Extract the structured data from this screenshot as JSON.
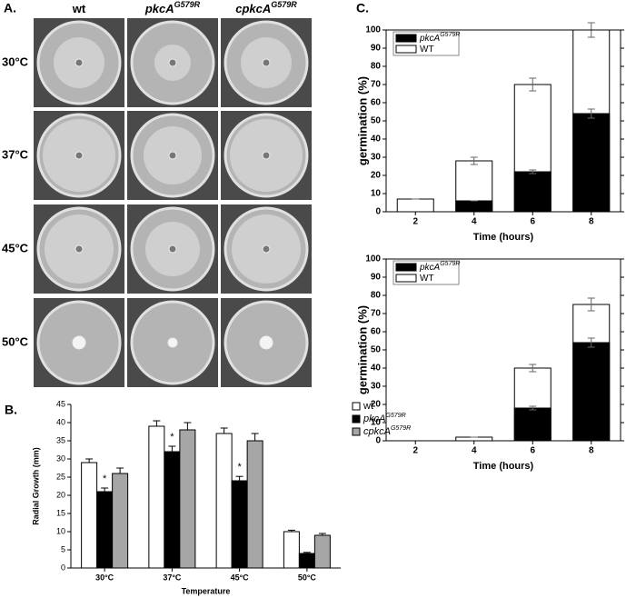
{
  "panel_a": {
    "label": "A.",
    "columns": [
      {
        "name": "wt"
      },
      {
        "name": "pkcA",
        "sup": "G579R"
      },
      {
        "name": "cpkcA",
        "sup": "G579R"
      }
    ],
    "rows": [
      "30°C",
      "37°C",
      "45°C",
      "50°C"
    ]
  },
  "chart_data": [
    {
      "type": "bar",
      "barmode": "group",
      "panel_label": "B.",
      "errorbars": "upper",
      "frame": false,
      "legend": "right",
      "categories": [
        "30°C",
        "37°C",
        "45°C",
        "50°C"
      ],
      "xlabel": "Temperature",
      "ylabel": "Radial Growth (mm)",
      "ylim": [
        0,
        45
      ],
      "yticks": [
        0,
        5,
        10,
        15,
        20,
        25,
        30,
        35,
        40,
        45
      ],
      "series": [
        {
          "name": "wt",
          "color": "#ffffff",
          "values": [
            29,
            39,
            37,
            10
          ],
          "errors": [
            1,
            1.5,
            1.5,
            0.4
          ]
        },
        {
          "name": "pkcA",
          "name_sup": "G579R",
          "color": "#000000",
          "values": [
            21,
            32,
            24,
            4
          ],
          "errors": [
            1,
            1.5,
            1.2,
            0.3
          ],
          "annotations": [
            "*",
            "*",
            "*",
            null
          ]
        },
        {
          "name": "cpkcA",
          "name_sup": "G579R",
          "color": "#a6a6a6",
          "values": [
            26,
            38,
            35,
            9
          ],
          "errors": [
            1.5,
            2,
            2,
            0.5
          ]
        }
      ]
    },
    {
      "type": "bar",
      "barmode": "overlay",
      "panel_label": "C.",
      "errorbars": "both",
      "frame": true,
      "legend": "upper left",
      "categories": [
        "2",
        "4",
        "6",
        "8"
      ],
      "xlabel": "Time (hours)",
      "ylabel": "germination (%)",
      "ylim": [
        0,
        100
      ],
      "yticks": [
        0,
        10,
        20,
        30,
        40,
        50,
        60,
        70,
        80,
        90,
        100
      ],
      "series": [
        {
          "name": "pkcA",
          "name_sup": "G579R",
          "color": "#000000",
          "values": [
            0,
            6,
            22,
            54
          ],
          "errors": [
            0,
            0,
            1,
            2.5
          ]
        },
        {
          "name": "WT",
          "color": "#ffffff",
          "values": [
            7,
            28,
            70,
            100
          ],
          "errors": [
            0,
            2,
            3.5,
            4
          ]
        }
      ]
    },
    {
      "type": "bar",
      "barmode": "overlay",
      "errorbars": "both",
      "frame": true,
      "legend": "upper left",
      "categories": [
        "2",
        "4",
        "6",
        "8"
      ],
      "xlabel": "Time (hours)",
      "ylabel": "germination (%)",
      "ylim": [
        0,
        100
      ],
      "yticks": [
        0,
        10,
        20,
        30,
        40,
        50,
        60,
        70,
        80,
        90,
        100
      ],
      "series": [
        {
          "name": "pkcA",
          "name_sup": "G579R",
          "color": "#000000",
          "values": [
            0,
            0,
            18,
            54
          ],
          "errors": [
            0,
            0,
            1,
            2.5
          ]
        },
        {
          "name": "WT",
          "color": "#ffffff",
          "values": [
            0,
            2,
            40,
            75
          ],
          "errors": [
            0,
            0,
            2,
            3.5
          ]
        }
      ]
    }
  ]
}
